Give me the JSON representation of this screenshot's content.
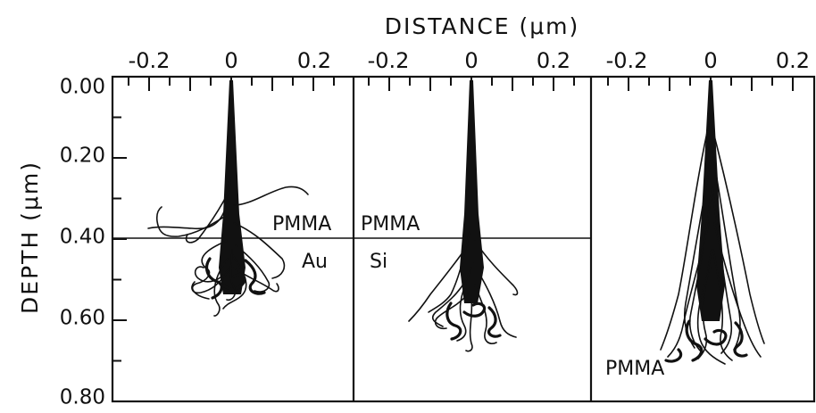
{
  "figure": {
    "x_title": "DISTANCE (μm)",
    "y_title": "DEPTH (μm)",
    "x_ticks": [
      "-0.2",
      "0",
      "0.2"
    ],
    "y_ticks": [
      "0.00",
      "0.20",
      "0.40",
      "0.60",
      "0.80"
    ]
  },
  "panels": [
    {
      "labels": {
        "upper": "PMMA",
        "lower": "Au"
      }
    },
    {
      "labels": {
        "upper": "PMMA",
        "lower": "Si"
      }
    },
    {
      "labels": {
        "bottom": "PMMA"
      }
    }
  ],
  "chart_data": {
    "type": "scatter",
    "xlabel": "DISTANCE (μm)",
    "ylabel": "DEPTH (μm)",
    "xlim": [
      -0.3,
      0.3
    ],
    "ylim": [
      0.8,
      0.0
    ],
    "x_tick_values": [
      -0.2,
      0,
      0.2
    ],
    "y_tick_values": [
      0.0,
      0.2,
      0.4,
      0.6,
      0.8
    ],
    "panels": [
      {
        "interface_depth": 0.4,
        "upper_material": "PMMA",
        "lower_material": "Au",
        "max_depth": 0.6,
        "lateral_range": [
          -0.21,
          0.2
        ]
      },
      {
        "interface_depth": 0.4,
        "upper_material": "PMMA",
        "lower_material": "Si",
        "max_depth": 0.67,
        "lateral_range": [
          -0.14,
          0.18
        ]
      },
      {
        "interface_depth": null,
        "material": "PMMA",
        "max_depth": 0.73,
        "lateral_range": [
          -0.13,
          0.14
        ]
      }
    ]
  }
}
